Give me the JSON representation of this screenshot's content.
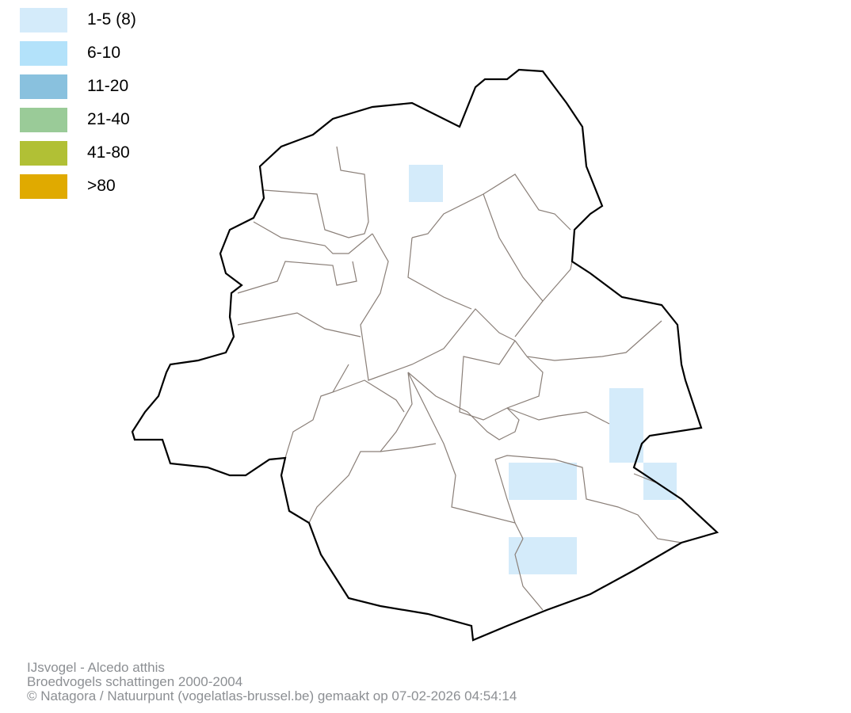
{
  "legend": {
    "items": [
      {
        "label": "1-5 (8)",
        "color": "#d4ebfa"
      },
      {
        "label": "6-10",
        "color": "#b3e2fa"
      },
      {
        "label": "11-20",
        "color": "#89c1de"
      },
      {
        "label": "21-40",
        "color": "#9acb98"
      },
      {
        "label": "41-80",
        "color": "#b1c035"
      },
      {
        "label": ">80",
        "color": "#e0aa00"
      }
    ]
  },
  "map": {
    "occupied_cell_class": "1-5",
    "occupied_cell_count": 8,
    "outline_color": "#000000",
    "municipality_border_color": "#8a7f78"
  },
  "footer": {
    "species": "IJsvogel - Alcedo atthis",
    "subtitle": "Broedvogels schattingen 2000-2004",
    "credit": "© Natagora / Natuurpunt (vogelatlas-brussel.be) gemaakt op 07-02-2026 04:54:14"
  }
}
